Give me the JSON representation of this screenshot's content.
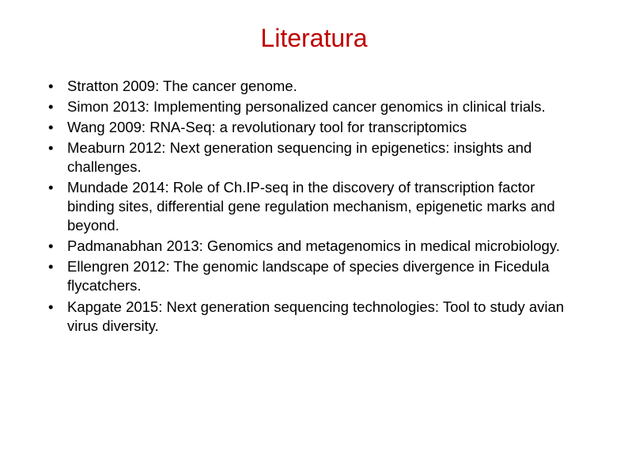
{
  "title": "Literatura",
  "title_color": "#c00000",
  "title_fontsize": 32,
  "body_fontsize": 18.5,
  "body_color": "#000000",
  "background_color": "#ffffff",
  "bullet_glyph": "•",
  "items": [
    {
      "text": "Stratton 2009: The cancer genome."
    },
    {
      "text": "Simon 2013: Implementing personalized cancer genomics in clinical trials."
    },
    {
      "text": "Wang 2009: RNA-Seq: a revolutionary tool for transcriptomics"
    },
    {
      "text": "Meaburn 2012: Next generation sequencing in epigenetics: insights and challenges."
    },
    {
      "text": "Mundade 2014: Role of Ch.IP-seq in the discovery of transcription factor binding sites, differential gene regulation mechanism, epigenetic marks and beyond."
    },
    {
      "text": "Padmanabhan 2013: Genomics and metagenomics in medical microbiology."
    },
    {
      "text": "Ellengren 2012: The genomic landscape of species divergence in Ficedula flycatchers."
    },
    {
      "text": "Kapgate 2015: Next generation sequencing technologies: Tool to study avian virus diversity."
    }
  ]
}
